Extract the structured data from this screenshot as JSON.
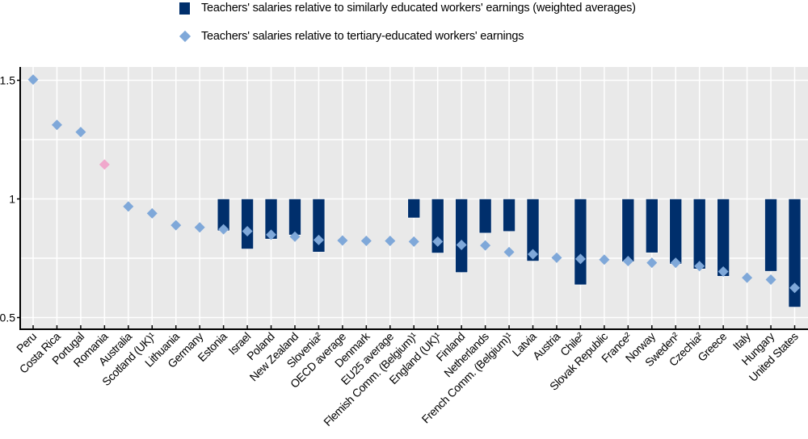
{
  "chart_data": {
    "type": "bar",
    "title": "",
    "xlabel": "",
    "ylabel": "",
    "ylim": [
      0.5,
      1.55
    ],
    "yticks": [
      {
        "value": 0.5,
        "label": "0.5"
      },
      {
        "value": 1,
        "label": "1"
      },
      {
        "value": 1.5,
        "label": "1.5"
      }
    ],
    "gridlines": [
      0.5,
      0.75,
      1,
      1.25,
      1.5
    ],
    "bar_base": 1,
    "grid": true,
    "legend_position": "top",
    "legend": [
      {
        "key": "bar",
        "label": "Teachers' salaries relative to similarly educated workers' earnings (weighted averages)",
        "color": "#002f6c",
        "marker": "square"
      },
      {
        "key": "diamond",
        "label": "Teachers' salaries relative to tertiary-educated workers' earnings",
        "color": "#7fa8d9",
        "marker": "diamond"
      }
    ],
    "highlight_color": "#f0a8cc",
    "categories": [
      "Peru",
      "Costa Rica",
      "Portugal",
      "Romania",
      "Australia",
      "Scotland (UK)¹",
      "Lithuania",
      "Germany",
      "Estonia",
      "Israel",
      "Poland",
      "New Zealand",
      "Slovenia²",
      "OECD average",
      "Denmark",
      "EU25 average",
      "Flemish Comm. (Belgium)¹",
      "England (UK)¹",
      "Finland",
      "Netherlands",
      "French Comm. (Belgium)¹",
      "Latvia",
      "Austria",
      "Chile²",
      "Slovak Republic",
      "France²",
      "Norway",
      "Sweden²",
      "Czechia²",
      "Greece",
      "Italy",
      "Hungary",
      "United States"
    ],
    "series": [
      {
        "name": "Teachers' salaries relative to similarly educated workers' earnings (weighted averages)",
        "kind": "bar",
        "values": [
          null,
          null,
          null,
          null,
          null,
          null,
          null,
          null,
          0.866,
          0.789,
          0.831,
          0.848,
          0.776,
          null,
          null,
          null,
          0.92,
          0.772,
          0.69,
          0.856,
          0.863,
          0.738,
          null,
          0.638,
          null,
          0.735,
          0.773,
          0.726,
          0.705,
          0.674,
          null,
          0.695,
          0.544
        ]
      },
      {
        "name": "Teachers' salaries relative to tertiary-educated workers' earnings",
        "kind": "diamond",
        "values": [
          1.503,
          1.312,
          1.282,
          1.145,
          0.968,
          0.939,
          0.889,
          0.88,
          0.872,
          0.864,
          0.849,
          0.841,
          0.827,
          0.825,
          0.823,
          0.823,
          0.82,
          0.82,
          0.806,
          0.804,
          0.776,
          0.767,
          0.752,
          0.747,
          0.744,
          0.738,
          0.731,
          0.731,
          0.717,
          0.694,
          0.668,
          0.66,
          0.625
        ],
        "highlighted": [
          "Romania"
        ]
      }
    ]
  }
}
